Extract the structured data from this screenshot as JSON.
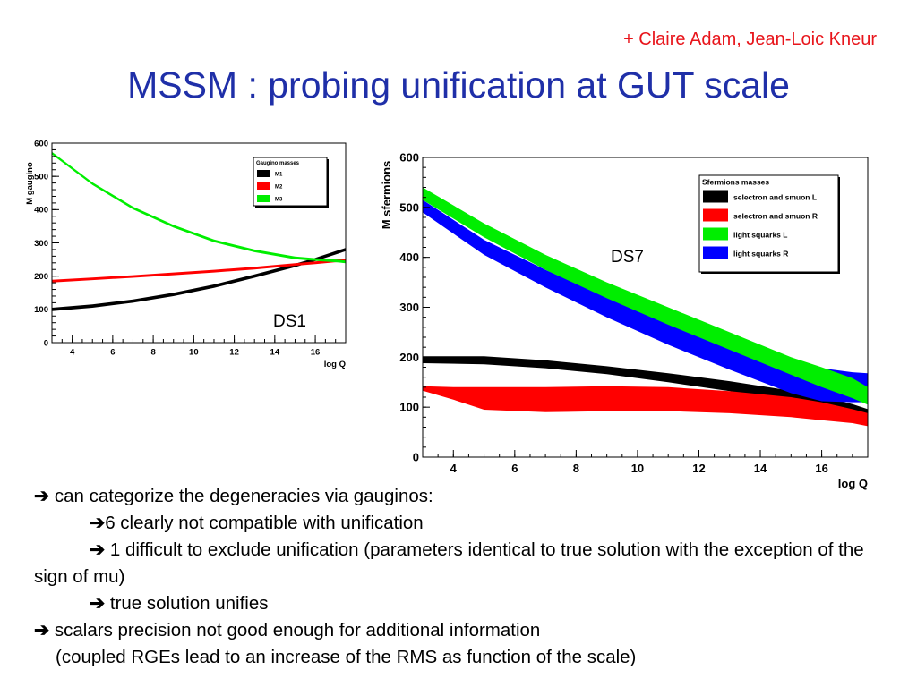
{
  "header": {
    "authors": "+ Claire Adam, Jean-Loic Kneur",
    "title": "MSSM : probing unification at GUT scale"
  },
  "chart_data": [
    {
      "type": "area",
      "label": "DS1",
      "xlabel": "log Q",
      "ylabel": "M gaugino",
      "xlim": [
        3,
        17.5
      ],
      "ylim": [
        0,
        600
      ],
      "xticks": [
        "4",
        "6",
        "8",
        "10",
        "12",
        "14",
        "16"
      ],
      "yticks": [
        "0",
        "100",
        "200",
        "300",
        "400",
        "500",
        "600"
      ],
      "legend": {
        "title": "Gaugino masses",
        "placement": "top-right"
      },
      "series": [
        {
          "name": "M1",
          "color": "#000000",
          "x": [
            3,
            5,
            7,
            9,
            11,
            13,
            15,
            16,
            17,
            17.5
          ],
          "y": [
            100,
            110,
            125,
            145,
            170,
            200,
            232,
            250,
            270,
            280
          ],
          "band": 10
        },
        {
          "name": "M2",
          "color": "#ff0000",
          "x": [
            3,
            5,
            7,
            9,
            11,
            13,
            15,
            16,
            17,
            17.5
          ],
          "y": [
            185,
            192,
            199,
            207,
            215,
            224,
            235,
            240,
            246,
            248
          ],
          "band": 8
        },
        {
          "name": "M3",
          "color": "#00ee00",
          "x": [
            3,
            5,
            7,
            9,
            11,
            13,
            15,
            16,
            17,
            17.5
          ],
          "y": [
            570,
            478,
            405,
            350,
            306,
            276,
            255,
            250,
            246,
            243
          ],
          "band": 8
        }
      ]
    },
    {
      "type": "area",
      "label": "DS7",
      "xlabel": "log Q",
      "ylabel": "M sfermions",
      "xlim": [
        3,
        17.5
      ],
      "ylim": [
        0,
        600
      ],
      "xticks": [
        "4",
        "6",
        "8",
        "10",
        "12",
        "14",
        "16"
      ],
      "yticks": [
        "0",
        "100",
        "200",
        "300",
        "400",
        "500",
        "600"
      ],
      "legend": {
        "title": "Sfermions masses",
        "placement": "top-right"
      },
      "series": [
        {
          "name": "selectron and smuon L",
          "color": "#000000",
          "x": [
            3,
            5,
            7,
            9,
            11,
            13,
            15,
            16,
            17,
            17.5
          ],
          "lower": [
            188,
            186,
            178,
            166,
            150,
            132,
            110,
            96,
            80,
            70
          ],
          "upper": [
            202,
            202,
            194,
            182,
            168,
            152,
            133,
            122,
            106,
            96
          ]
        },
        {
          "name": "selectron and smuon R",
          "color": "#ff0000",
          "x": [
            3,
            4,
            5,
            7,
            9,
            11,
            13,
            15,
            16,
            17,
            17.5
          ],
          "lower": [
            133,
            115,
            95,
            90,
            92,
            92,
            88,
            80,
            74,
            68,
            62
          ],
          "upper": [
            142,
            140,
            140,
            140,
            142,
            140,
            132,
            120,
            110,
            96,
            88
          ]
        },
        {
          "name": "light squarks R",
          "color": "#0000ff",
          "x": [
            3,
            5,
            7,
            9,
            11,
            13,
            15,
            16,
            17,
            17.5
          ],
          "lower": [
            490,
            405,
            340,
            280,
            225,
            175,
            128,
            112,
            110,
            110
          ],
          "upper": [
            515,
            435,
            375,
            320,
            268,
            225,
            190,
            178,
            170,
            168
          ]
        },
        {
          "name": "light squarks L",
          "color": "#00ee00",
          "x": [
            3,
            5,
            7,
            9,
            11,
            13,
            15,
            16,
            17,
            17.5
          ],
          "lower": [
            515,
            440,
            375,
            318,
            265,
            215,
            165,
            140,
            118,
            105
          ],
          "upper": [
            540,
            468,
            405,
            350,
            300,
            250,
            200,
            180,
            158,
            140
          ]
        }
      ]
    }
  ],
  "bullets": [
    {
      "arrow": "➔",
      "text": " can categorize the degeneracies via gauginos:"
    },
    {
      "arrow": "➔",
      "text": "6 clearly not compatible with unification"
    },
    {
      "arrow": "➔",
      "text": " 1 difficult to exclude unification (parameters identical to true solution with the exception of the sign of mu)"
    },
    {
      "arrow": "➔",
      "text": " true solution unifies"
    },
    {
      "arrow": "➔",
      "text": " scalars precision not good enough for additional information"
    },
    {
      "arrow": "",
      "text": "(coupled RGEs lead to an increase of the RMS as function of the scale)"
    }
  ]
}
